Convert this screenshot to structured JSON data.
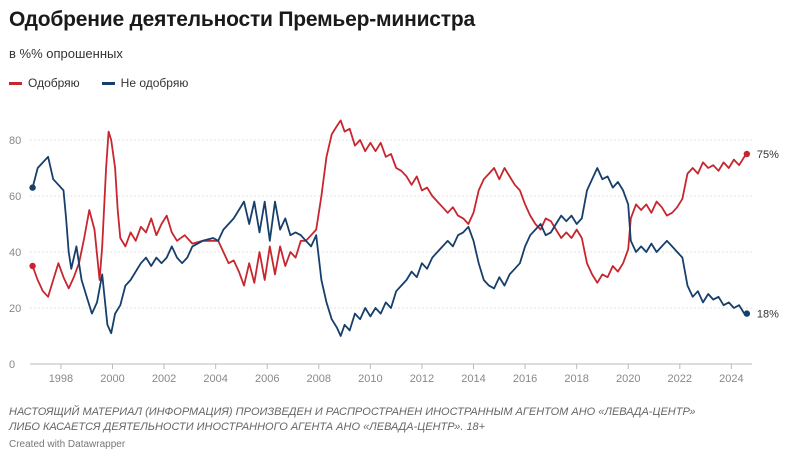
{
  "title": "Одобрение деятельности Премьер-министра",
  "subtitle": "в %% опрошенных",
  "legend": [
    {
      "label": "Одобряю",
      "color": "#c8262e"
    },
    {
      "label": "Не одобряю",
      "color": "#163f6b"
    }
  ],
  "note_line1": "НАСТОЯЩИЙ МАТЕРИАЛ (ИНФОРМАЦИЯ) ПРОИЗВЕДЕН И РАСПРОСТРАНЕН ИНОСТРАННЫМ АГЕНТОМ АНО «ЛЕВАДА-ЦЕНТР»",
  "note_line2": "ЛИБО КАСАЕТСЯ ДЕЯТЕЛЬНОСТИ ИНОСТРАННОГО АГЕНТА АНО «ЛЕВАДА-ЦЕНТР». 18+",
  "credit": "Created with Datawrapper",
  "chart_data": {
    "type": "line",
    "title": "Одобрение деятельности Премьер-министра",
    "subtitle": "в %% опрошенных",
    "xlabel": "",
    "ylabel": "",
    "xlim": [
      1996.8,
      2024.8
    ],
    "ylim": [
      0,
      90
    ],
    "x_ticks": [
      1998,
      2000,
      2002,
      2004,
      2006,
      2008,
      2010,
      2012,
      2014,
      2016,
      2018,
      2020,
      2022,
      2024
    ],
    "y_ticks": [
      0,
      20,
      40,
      60,
      80
    ],
    "grid": true,
    "legend_position": "top-left",
    "series": [
      {
        "name": "Одобряю",
        "color": "#c8262e",
        "end_label": "75%",
        "points": [
          [
            1996.9,
            35
          ],
          [
            1997.1,
            30
          ],
          [
            1997.3,
            26
          ],
          [
            1997.5,
            24
          ],
          [
            1997.7,
            30
          ],
          [
            1997.9,
            36
          ],
          [
            1998.1,
            31
          ],
          [
            1998.3,
            27
          ],
          [
            1998.5,
            31
          ],
          [
            1998.7,
            36
          ],
          [
            1998.9,
            45
          ],
          [
            1999.1,
            55
          ],
          [
            1999.3,
            48
          ],
          [
            1999.5,
            30
          ],
          [
            1999.6,
            42
          ],
          [
            1999.75,
            70
          ],
          [
            1999.85,
            83
          ],
          [
            1999.95,
            80
          ],
          [
            2000.1,
            70
          ],
          [
            2000.2,
            55
          ],
          [
            2000.3,
            45
          ],
          [
            2000.5,
            42
          ],
          [
            2000.7,
            47
          ],
          [
            2000.9,
            44
          ],
          [
            2001.1,
            49
          ],
          [
            2001.3,
            47
          ],
          [
            2001.5,
            52
          ],
          [
            2001.7,
            46
          ],
          [
            2001.9,
            50
          ],
          [
            2002.1,
            53
          ],
          [
            2002.3,
            47
          ],
          [
            2002.5,
            44
          ],
          [
            2002.8,
            46
          ],
          [
            2003.1,
            43
          ],
          [
            2003.5,
            44
          ],
          [
            2003.9,
            44
          ],
          [
            2004.1,
            44
          ],
          [
            2004.3,
            40
          ],
          [
            2004.5,
            36
          ],
          [
            2004.7,
            37
          ],
          [
            2004.9,
            33
          ],
          [
            2005.1,
            28
          ],
          [
            2005.3,
            36
          ],
          [
            2005.5,
            29
          ],
          [
            2005.7,
            40
          ],
          [
            2005.9,
            30
          ],
          [
            2006.1,
            42
          ],
          [
            2006.3,
            32
          ],
          [
            2006.5,
            42
          ],
          [
            2006.7,
            35
          ],
          [
            2006.9,
            40
          ],
          [
            2007.1,
            38
          ],
          [
            2007.3,
            44
          ],
          [
            2007.5,
            44
          ],
          [
            2007.7,
            46
          ],
          [
            2007.9,
            48
          ],
          [
            2008.1,
            60
          ],
          [
            2008.3,
            74
          ],
          [
            2008.5,
            82
          ],
          [
            2008.7,
            85
          ],
          [
            2008.85,
            87
          ],
          [
            2009.0,
            83
          ],
          [
            2009.2,
            84
          ],
          [
            2009.4,
            78
          ],
          [
            2009.6,
            80
          ],
          [
            2009.8,
            76
          ],
          [
            2010.0,
            79
          ],
          [
            2010.2,
            76
          ],
          [
            2010.4,
            79
          ],
          [
            2010.6,
            74
          ],
          [
            2010.8,
            75
          ],
          [
            2011.0,
            70
          ],
          [
            2011.2,
            69
          ],
          [
            2011.4,
            67
          ],
          [
            2011.6,
            64
          ],
          [
            2011.8,
            67
          ],
          [
            2012.0,
            62
          ],
          [
            2012.2,
            63
          ],
          [
            2012.4,
            60
          ],
          [
            2012.6,
            58
          ],
          [
            2012.8,
            56
          ],
          [
            2013.0,
            54
          ],
          [
            2013.2,
            56
          ],
          [
            2013.4,
            53
          ],
          [
            2013.6,
            52
          ],
          [
            2013.8,
            50
          ],
          [
            2014.0,
            54
          ],
          [
            2014.2,
            62
          ],
          [
            2014.4,
            66
          ],
          [
            2014.6,
            68
          ],
          [
            2014.8,
            70
          ],
          [
            2015.0,
            66
          ],
          [
            2015.2,
            70
          ],
          [
            2015.4,
            67
          ],
          [
            2015.6,
            64
          ],
          [
            2015.8,
            62
          ],
          [
            2016.0,
            57
          ],
          [
            2016.2,
            53
          ],
          [
            2016.4,
            50
          ],
          [
            2016.6,
            48
          ],
          [
            2016.8,
            52
          ],
          [
            2017.0,
            51
          ],
          [
            2017.2,
            48
          ],
          [
            2017.4,
            45
          ],
          [
            2017.6,
            47
          ],
          [
            2017.8,
            45
          ],
          [
            2018.0,
            48
          ],
          [
            2018.2,
            45
          ],
          [
            2018.4,
            36
          ],
          [
            2018.6,
            32
          ],
          [
            2018.8,
            29
          ],
          [
            2019.0,
            32
          ],
          [
            2019.2,
            31
          ],
          [
            2019.4,
            35
          ],
          [
            2019.6,
            33
          ],
          [
            2019.8,
            36
          ],
          [
            2020.0,
            41
          ],
          [
            2020.1,
            52
          ],
          [
            2020.3,
            57
          ],
          [
            2020.5,
            55
          ],
          [
            2020.7,
            57
          ],
          [
            2020.9,
            54
          ],
          [
            2021.1,
            58
          ],
          [
            2021.3,
            56
          ],
          [
            2021.5,
            53
          ],
          [
            2021.7,
            54
          ],
          [
            2021.9,
            56
          ],
          [
            2022.1,
            59
          ],
          [
            2022.3,
            68
          ],
          [
            2022.5,
            70
          ],
          [
            2022.7,
            68
          ],
          [
            2022.9,
            72
          ],
          [
            2023.1,
            70
          ],
          [
            2023.3,
            71
          ],
          [
            2023.5,
            69
          ],
          [
            2023.7,
            72
          ],
          [
            2023.9,
            70
          ],
          [
            2024.1,
            73
          ],
          [
            2024.3,
            71
          ],
          [
            2024.5,
            74
          ],
          [
            2024.6,
            75
          ]
        ]
      },
      {
        "name": "Не одобряю",
        "color": "#163f6b",
        "end_label": "18%",
        "points": [
          [
            1996.9,
            63
          ],
          [
            1997.1,
            70
          ],
          [
            1997.3,
            72
          ],
          [
            1997.5,
            74
          ],
          [
            1997.7,
            66
          ],
          [
            1997.9,
            64
          ],
          [
            1998.1,
            62
          ],
          [
            1998.2,
            52
          ],
          [
            1998.3,
            40
          ],
          [
            1998.4,
            34
          ],
          [
            1998.6,
            42
          ],
          [
            1998.8,
            30
          ],
          [
            1999.0,
            24
          ],
          [
            1999.2,
            18
          ],
          [
            1999.4,
            22
          ],
          [
            1999.6,
            32
          ],
          [
            1999.8,
            14
          ],
          [
            1999.95,
            11
          ],
          [
            2000.1,
            18
          ],
          [
            2000.3,
            21
          ],
          [
            2000.5,
            28
          ],
          [
            2000.7,
            30
          ],
          [
            2000.9,
            33
          ],
          [
            2001.1,
            36
          ],
          [
            2001.3,
            38
          ],
          [
            2001.5,
            35
          ],
          [
            2001.7,
            38
          ],
          [
            2001.9,
            36
          ],
          [
            2002.1,
            38
          ],
          [
            2002.3,
            42
          ],
          [
            2002.5,
            38
          ],
          [
            2002.7,
            36
          ],
          [
            2002.9,
            38
          ],
          [
            2003.1,
            42
          ],
          [
            2003.5,
            44
          ],
          [
            2003.9,
            45
          ],
          [
            2004.1,
            44
          ],
          [
            2004.3,
            48
          ],
          [
            2004.5,
            50
          ],
          [
            2004.7,
            52
          ],
          [
            2004.9,
            55
          ],
          [
            2005.1,
            58
          ],
          [
            2005.3,
            50
          ],
          [
            2005.5,
            58
          ],
          [
            2005.7,
            47
          ],
          [
            2005.9,
            58
          ],
          [
            2006.1,
            44
          ],
          [
            2006.3,
            58
          ],
          [
            2006.5,
            48
          ],
          [
            2006.7,
            52
          ],
          [
            2006.9,
            46
          ],
          [
            2007.1,
            47
          ],
          [
            2007.3,
            46
          ],
          [
            2007.5,
            44
          ],
          [
            2007.7,
            42
          ],
          [
            2007.9,
            46
          ],
          [
            2008.1,
            30
          ],
          [
            2008.3,
            22
          ],
          [
            2008.5,
            16
          ],
          [
            2008.7,
            13
          ],
          [
            2008.85,
            10
          ],
          [
            2009.0,
            14
          ],
          [
            2009.2,
            12
          ],
          [
            2009.4,
            18
          ],
          [
            2009.6,
            16
          ],
          [
            2009.8,
            20
          ],
          [
            2010.0,
            17
          ],
          [
            2010.2,
            20
          ],
          [
            2010.4,
            18
          ],
          [
            2010.6,
            22
          ],
          [
            2010.8,
            20
          ],
          [
            2011.0,
            26
          ],
          [
            2011.2,
            28
          ],
          [
            2011.4,
            30
          ],
          [
            2011.6,
            33
          ],
          [
            2011.8,
            31
          ],
          [
            2012.0,
            36
          ],
          [
            2012.2,
            34
          ],
          [
            2012.4,
            38
          ],
          [
            2012.6,
            40
          ],
          [
            2012.8,
            42
          ],
          [
            2013.0,
            44
          ],
          [
            2013.2,
            42
          ],
          [
            2013.4,
            46
          ],
          [
            2013.6,
            47
          ],
          [
            2013.8,
            49
          ],
          [
            2014.0,
            44
          ],
          [
            2014.2,
            36
          ],
          [
            2014.4,
            30
          ],
          [
            2014.6,
            28
          ],
          [
            2014.8,
            27
          ],
          [
            2015.0,
            31
          ],
          [
            2015.2,
            28
          ],
          [
            2015.4,
            32
          ],
          [
            2015.6,
            34
          ],
          [
            2015.8,
            36
          ],
          [
            2016.0,
            42
          ],
          [
            2016.2,
            46
          ],
          [
            2016.4,
            48
          ],
          [
            2016.6,
            50
          ],
          [
            2016.8,
            46
          ],
          [
            2017.0,
            47
          ],
          [
            2017.2,
            50
          ],
          [
            2017.4,
            53
          ],
          [
            2017.6,
            51
          ],
          [
            2017.8,
            53
          ],
          [
            2018.0,
            50
          ],
          [
            2018.2,
            52
          ],
          [
            2018.4,
            62
          ],
          [
            2018.6,
            66
          ],
          [
            2018.8,
            70
          ],
          [
            2019.0,
            66
          ],
          [
            2019.2,
            67
          ],
          [
            2019.4,
            63
          ],
          [
            2019.6,
            65
          ],
          [
            2019.8,
            62
          ],
          [
            2020.0,
            57
          ],
          [
            2020.1,
            44
          ],
          [
            2020.3,
            40
          ],
          [
            2020.5,
            42
          ],
          [
            2020.7,
            40
          ],
          [
            2020.9,
            43
          ],
          [
            2021.1,
            40
          ],
          [
            2021.3,
            42
          ],
          [
            2021.5,
            44
          ],
          [
            2021.7,
            42
          ],
          [
            2021.9,
            40
          ],
          [
            2022.1,
            38
          ],
          [
            2022.3,
            28
          ],
          [
            2022.5,
            24
          ],
          [
            2022.7,
            26
          ],
          [
            2022.9,
            22
          ],
          [
            2023.1,
            25
          ],
          [
            2023.3,
            23
          ],
          [
            2023.5,
            24
          ],
          [
            2023.7,
            21
          ],
          [
            2023.9,
            22
          ],
          [
            2024.1,
            20
          ],
          [
            2024.3,
            21
          ],
          [
            2024.5,
            18
          ],
          [
            2024.6,
            18
          ]
        ]
      }
    ]
  }
}
